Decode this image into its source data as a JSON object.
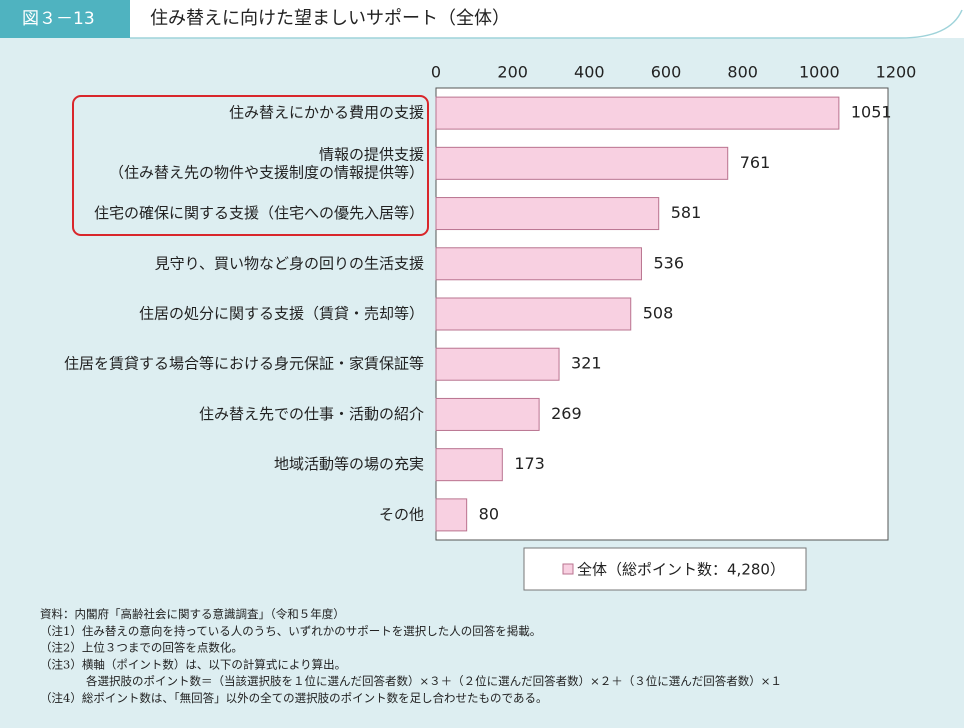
{
  "chart_data": {
    "type": "bar",
    "orientation": "horizontal",
    "figure_label": "図３－13",
    "title": "住み替えに向けた望ましいサポート（全体）",
    "categories": [
      "住み替えにかかる費用の支援",
      "情報の提供支援\n（住み替え先の物件や支援制度の情報提供等）",
      "住宅の確保に関する支援（住宅への優先入居等）",
      "見守り、買い物など身の回りの生活支援",
      "住居の処分に関する支援（賃貸・売却等）",
      "住居を賃貸する場合等における身元保証・家賃保証等",
      "住み替え先での仕事・活動の紹介",
      "地域活動等の場の充実",
      "その他"
    ],
    "series": [
      {
        "name": "全体（総ポイント数：4,280）",
        "color": "#f8d0e1",
        "values": [
          1051,
          761,
          581,
          536,
          508,
          321,
          269,
          173,
          80
        ]
      }
    ],
    "xlim": [
      0,
      1200
    ],
    "xticks": [
      0,
      200,
      400,
      600,
      800,
      1000,
      1200
    ],
    "grid": false,
    "legend": "bottom",
    "notes": [
      "資料：内閣府「高齢社会に関する意識調査」（令和５年度）",
      "（注1）住み替えの意向を持っている人のうち、いずれかのサポートを選択した人の回答を掲載。",
      "（注2）上位３つまでの回答を点数化。",
      "（注3）横軸（ポイント数）は、以下の計算式により算出。",
      "　　　　各選択肢のポイント数＝（当該選択肢を１位に選んだ回答者数）×３＋（２位に選んだ回答者数）×２＋（３位に選んだ回答者数）×１",
      "（注4）総ポイント数は、「無回答」以外の全ての選択肢のポイント数を足し合わせたものである。"
    ]
  }
}
